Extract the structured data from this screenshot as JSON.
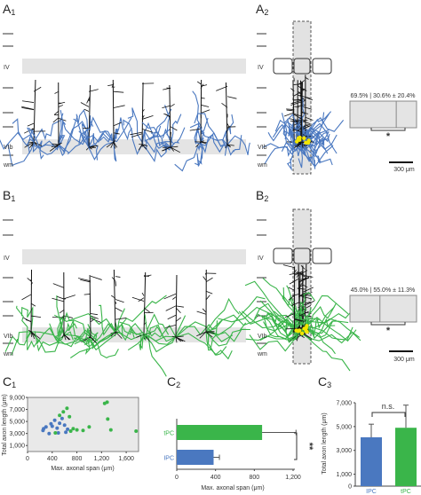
{
  "panels": {
    "A1": {
      "letter": "A",
      "sub": "1"
    },
    "A2": {
      "letter": "A",
      "sub": "2"
    },
    "B1": {
      "letter": "B",
      "sub": "1"
    },
    "B2": {
      "letter": "B",
      "sub": "2"
    },
    "C1": {
      "letter": "C",
      "sub": "1"
    },
    "C2": {
      "letter": "C",
      "sub": "2"
    },
    "C3": {
      "letter": "C",
      "sub": "3"
    }
  },
  "layers": {
    "iv": "IV",
    "vib": "VIb",
    "wm": "wm"
  },
  "colors": {
    "blue_axon": "#4a78c0",
    "green_axon": "#3ab54a",
    "dendrite": "#111111",
    "soma": "#f2e600",
    "band": "#e4e4e4"
  },
  "A2": {
    "distribution_text": "69.5% | 30.6% ± 20.4%",
    "left_fraction": 0.695,
    "significance": "*",
    "scale_bar": "300 μm"
  },
  "B2": {
    "distribution_text": "45.0% | 55.0% ± 11.3%",
    "left_fraction": 0.45,
    "significance": "*",
    "scale_bar": "300 μm"
  },
  "C1": {
    "chart_data": {
      "type": "scatter",
      "xlabel": "Max. axonal span (μm)",
      "ylabel": "Total axon length (μm)",
      "xlim": [
        0,
        1800
      ],
      "ylim": [
        0,
        9000
      ],
      "xticks": [
        0,
        400,
        800,
        1200,
        1600
      ],
      "xtick_labels": [
        "0",
        "400",
        "800",
        "1,200",
        "1,600"
      ],
      "yticks": [
        1000,
        3000,
        5000,
        7000,
        9000
      ],
      "ytick_labels": [
        "1,000",
        "3,000",
        "5,000",
        "7,000",
        "9,000"
      ],
      "series": [
        {
          "color": "#4a78c0",
          "points": [
            [
              250,
              3500
            ],
            [
              260,
              3800
            ],
            [
              300,
              4100
            ],
            [
              350,
              3000
            ],
            [
              380,
              4600
            ],
            [
              400,
              4200
            ],
            [
              440,
              5200
            ],
            [
              480,
              3900
            ],
            [
              500,
              3100
            ],
            [
              520,
              4700
            ],
            [
              560,
              5500
            ],
            [
              600,
              4400
            ],
            [
              620,
              3200
            ],
            [
              650,
              3700
            ]
          ]
        },
        {
          "color": "#3ab54a",
          "points": [
            [
              450,
              3100
            ],
            [
              520,
              6000
            ],
            [
              580,
              6600
            ],
            [
              640,
              7200
            ],
            [
              680,
              5800
            ],
            [
              700,
              3400
            ],
            [
              740,
              3800
            ],
            [
              800,
              3600
            ],
            [
              900,
              3500
            ],
            [
              1000,
              4100
            ],
            [
              1250,
              8000
            ],
            [
              1290,
              8200
            ],
            [
              1300,
              5400
            ],
            [
              1350,
              3600
            ],
            [
              1760,
              3400
            ]
          ]
        }
      ]
    }
  },
  "C2": {
    "chart_data": {
      "type": "bar",
      "categories": [
        "tPC",
        "IPC"
      ],
      "values": [
        880,
        380
      ],
      "errors": [
        350,
        60
      ],
      "colors": [
        "#3ab54a",
        "#4a78c0"
      ],
      "xlabel": "Max. axonal span (μm)",
      "xlim": [
        0,
        1200
      ],
      "xticks": [
        0,
        400,
        800,
        1200
      ],
      "xtick_labels": [
        "0",
        "400",
        "800",
        "1,200"
      ],
      "significance": "**"
    }
  },
  "C3": {
    "chart_data": {
      "type": "bar",
      "categories": [
        "IPC",
        "tPC"
      ],
      "values": [
        4100,
        4900
      ],
      "errors": [
        1100,
        1900
      ],
      "colors": [
        "#4a78c0",
        "#3ab54a"
      ],
      "ylabel": "Total axon length (μm)",
      "ylim": [
        0,
        7000
      ],
      "yticks": [
        0,
        1000,
        3000,
        5000,
        7000
      ],
      "ytick_labels": [
        "0",
        "1,000",
        "3,000",
        "5,000",
        "7,000"
      ],
      "significance": "n.s."
    }
  }
}
